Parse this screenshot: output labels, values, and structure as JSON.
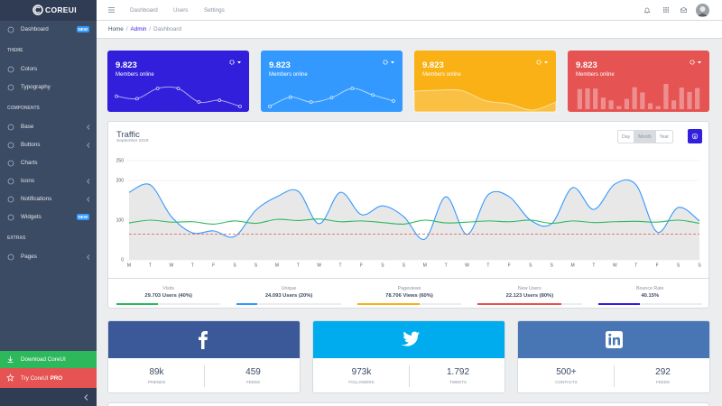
{
  "brand": "COREUI",
  "sidebar": {
    "nav": [
      {
        "label": "Dashboard",
        "badge": "NEW"
      },
      {
        "heading": "THEME"
      },
      {
        "label": "Colors"
      },
      {
        "label": "Typography"
      },
      {
        "heading": "COMPONENTS"
      },
      {
        "label": "Base",
        "has_children": true
      },
      {
        "label": "Buttons",
        "has_children": true
      },
      {
        "label": "Charts"
      },
      {
        "label": "Icons",
        "has_children": true
      },
      {
        "label": "Notifications",
        "has_children": true
      },
      {
        "label": "Widgets",
        "badge": "NEW"
      },
      {
        "heading": "EXTRAS"
      },
      {
        "label": "Pages",
        "has_children": true
      }
    ],
    "download": "Download CoreUI",
    "try": "Try CoreUI",
    "try_bold": "PRO"
  },
  "header": {
    "nav": [
      "Dashboard",
      "Users",
      "Settings"
    ]
  },
  "breadcrumb": {
    "items": [
      "Home",
      "Admin",
      "Dashboard"
    ],
    "separator": "/"
  },
  "cards": [
    {
      "value": "9.823",
      "label": "Members online",
      "color": "#321fdb",
      "chart": {
        "type": "line",
        "values": [
          65,
          59,
          84,
          84,
          51,
          55,
          40
        ]
      }
    },
    {
      "value": "9.823",
      "label": "Members online",
      "color": "#3399ff",
      "chart": {
        "type": "line",
        "values": [
          1,
          18,
          9,
          17,
          34,
          22,
          11
        ]
      }
    },
    {
      "value": "9.823",
      "label": "Members online",
      "color": "#f9b115",
      "chart": {
        "type": "area",
        "values": [
          78,
          81,
          80,
          45,
          34,
          12,
          40
        ]
      }
    },
    {
      "value": "9.823",
      "label": "Members online",
      "color": "#e55353",
      "chart": {
        "type": "bar",
        "values": [
          78,
          81,
          80,
          45,
          34,
          12,
          40,
          85,
          65,
          23,
          12,
          98,
          34,
          84,
          67,
          82
        ]
      }
    }
  ],
  "traffic": {
    "title": "Traffic",
    "subtitle": "September 2019",
    "buttons": [
      "Day",
      "Month",
      "Year"
    ],
    "active_button": 1,
    "stats": [
      {
        "label": "Visits",
        "value": "29.703 Users (40%)",
        "progress": 40,
        "color": "#2eb85c"
      },
      {
        "label": "Unique",
        "value": "24.093 Users (20%)",
        "progress": 20,
        "color": "#3399ff"
      },
      {
        "label": "Pageviews",
        "value": "78.706 Views (60%)",
        "progress": 60,
        "color": "#f9b115"
      },
      {
        "label": "New Users",
        "value": "22.123 Users (80%)",
        "progress": 80,
        "color": "#e55353"
      },
      {
        "label": "Bounce Rate",
        "value": "40.15%",
        "progress": 40,
        "color": "#321fdb"
      }
    ]
  },
  "chart_data": {
    "type": "line",
    "categories": [
      "M",
      "T",
      "W",
      "T",
      "F",
      "S",
      "S",
      "M",
      "T",
      "W",
      "T",
      "F",
      "S",
      "S",
      "M",
      "T",
      "W",
      "T",
      "F",
      "S",
      "S",
      "M",
      "T",
      "W",
      "T",
      "F",
      "S",
      "S"
    ],
    "series": [
      {
        "color": "#3399ff",
        "fill": "#e6e6e6",
        "values": [
          170,
          189,
          109,
          68,
          73,
          59,
          125,
          159,
          173,
          91,
          170,
          114,
          136,
          109,
          52,
          159,
          64,
          164,
          159,
          100,
          91,
          182,
          127,
          191,
          189,
          70,
          132,
          98
        ]
      },
      {
        "color": "#2eb85c",
        "values": [
          93,
          100,
          95,
          96,
          90,
          98,
          92,
          102,
          99,
          103,
          96,
          98,
          94,
          90,
          100,
          93,
          95,
          98,
          96,
          100,
          92,
          98,
          94,
          96,
          97,
          95,
          100,
          92
        ]
      },
      {
        "color": "#e55353",
        "dashed": true,
        "values": [
          65,
          65,
          65,
          65,
          65,
          65,
          65,
          65,
          65,
          65,
          65,
          65,
          65,
          65,
          65,
          65,
          65,
          65,
          65,
          65,
          65,
          65,
          65,
          65,
          65,
          65,
          65,
          65
        ]
      }
    ],
    "ylim": [
      0,
      250
    ],
    "yticks": [
      0,
      100,
      200,
      250
    ],
    "grid": true
  },
  "social": [
    {
      "network": "facebook",
      "color": "#3b5998",
      "stats": [
        {
          "value": "89k",
          "label": "FRIENDS"
        },
        {
          "value": "459",
          "label": "FEEDS"
        }
      ]
    },
    {
      "network": "twitter",
      "color": "#00aced",
      "stats": [
        {
          "value": "973k",
          "label": "FOLLOWERS"
        },
        {
          "value": "1.792",
          "label": "TWEETS"
        }
      ]
    },
    {
      "network": "linkedin",
      "color": "#4875b4",
      "stats": [
        {
          "value": "500+",
          "label": "CONTACTS"
        },
        {
          "value": "292",
          "label": "FEEDS"
        }
      ]
    }
  ]
}
